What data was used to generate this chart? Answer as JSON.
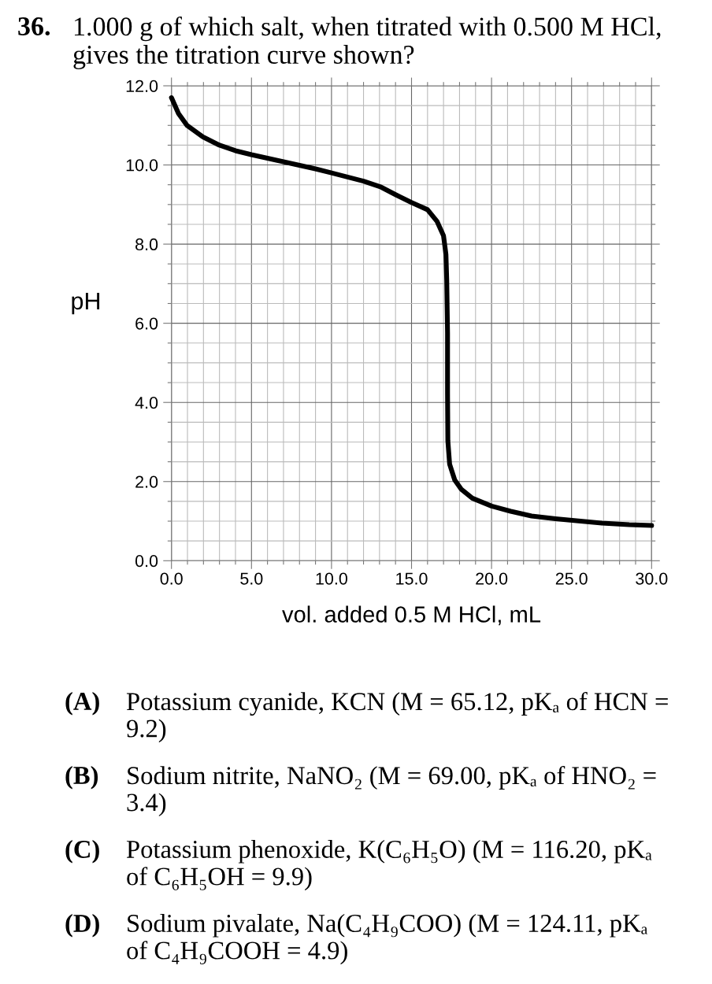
{
  "chart_data": {
    "type": "line",
    "title": "1.000 g of which salt, when titrated with 0.500 M HCl, gives the titration curve shown?",
    "xlabel": "vol. added 0.5 M HCl, mL",
    "ylabel": "pH",
    "annotations": [
      "36.",
      "(A)",
      "Potassium cyanide, KCN (M = 65.12, pKₐ of HCN = 9.2)",
      "(B)",
      "Sodium nitrite, NaNO₂ (M = 69.00, pKₐ of HNO₂ = 3.4)",
      "(C)",
      "Potassium phenoxide, K(C₆H₅O) (M = 116.20, pKₐ of C₆H₅OH = 9.9)",
      "(D)",
      "Sodium pivalate, Na(C₄H₉COO) (M = 124.11, pKₐ of C₄H₉COOH = 4.9)"
    ],
    "x": [
      0,
      0.44,
      0.97,
      2.0,
      3.0,
      4.0,
      5.0,
      7.0,
      9.0,
      10.0,
      12.0,
      13.1,
      14.0,
      15.0,
      16.0,
      16.6,
      17.0,
      17.15,
      17.2,
      17.25,
      17.25,
      17.27,
      17.38,
      17.7,
      18.1,
      18.8,
      20.0,
      21.2,
      22.5,
      24.0,
      25.3,
      26.9,
      28.6,
      30.0
    ],
    "series": [
      {
        "color": "#000000",
        "values": [
          11.7,
          11.3,
          11.0,
          10.7,
          10.5,
          10.36,
          10.26,
          10.08,
          9.9,
          9.8,
          9.59,
          9.44,
          9.25,
          9.05,
          8.87,
          8.57,
          8.21,
          7.74,
          7.08,
          5.75,
          4.23,
          3.03,
          2.44,
          2.04,
          1.81,
          1.58,
          1.38,
          1.25,
          1.13,
          1.06,
          1.01,
          0.95,
          0.91,
          0.89
        ]
      }
    ],
    "xlim": [
      0,
      30
    ],
    "ylim": [
      0,
      12
    ],
    "xticks": [
      {
        "value": 0,
        "label": "0.0"
      },
      {
        "value": 1,
        "label": null
      },
      {
        "value": 2,
        "label": null
      },
      {
        "value": 3,
        "label": null
      },
      {
        "value": 4,
        "label": null
      },
      {
        "value": 5,
        "label": "5.0"
      },
      {
        "value": 6,
        "label": null
      },
      {
        "value": 7,
        "label": null
      },
      {
        "value": 8,
        "label": null
      },
      {
        "value": 9,
        "label": null
      },
      {
        "value": 10,
        "label": "10.0"
      },
      {
        "value": 11,
        "label": null
      },
      {
        "value": 12,
        "label": null
      },
      {
        "value": 13,
        "label": null
      },
      {
        "value": 14,
        "label": null
      },
      {
        "value": 15,
        "label": "15.0"
      },
      {
        "value": 16,
        "label": null
      },
      {
        "value": 17,
        "label": null
      },
      {
        "value": 18,
        "label": null
      },
      {
        "value": 19,
        "label": null
      },
      {
        "value": 20,
        "label": "20.0"
      },
      {
        "value": 21,
        "label": null
      },
      {
        "value": 22,
        "label": null
      },
      {
        "value": 23,
        "label": null
      },
      {
        "value": 24,
        "label": null
      },
      {
        "value": 25,
        "label": "25.0"
      },
      {
        "value": 26,
        "label": null
      },
      {
        "value": 27,
        "label": null
      },
      {
        "value": 28,
        "label": null
      },
      {
        "value": 29,
        "label": null
      },
      {
        "value": 30,
        "label": "30.0"
      }
    ],
    "yticks": [
      {
        "value": 0,
        "label": "0.0"
      },
      {
        "value": 0.5,
        "label": null
      },
      {
        "value": 1,
        "label": null
      },
      {
        "value": 1.5,
        "label": null
      },
      {
        "value": 2,
        "label": "2.0"
      },
      {
        "value": 2.5,
        "label": null
      },
      {
        "value": 3,
        "label": null
      },
      {
        "value": 3.5,
        "label": null
      },
      {
        "value": 4,
        "label": "4.0"
      },
      {
        "value": 4.5,
        "label": null
      },
      {
        "value": 5,
        "label": null
      },
      {
        "value": 5.5,
        "label": null
      },
      {
        "value": 6,
        "label": "6.0"
      },
      {
        "value": 6.5,
        "label": null
      },
      {
        "value": 7,
        "label": null
      },
      {
        "value": 7.5,
        "label": null
      },
      {
        "value": 8,
        "label": "8.0"
      },
      {
        "value": 8.5,
        "label": null
      },
      {
        "value": 9,
        "label": null
      },
      {
        "value": 9.5,
        "label": null
      },
      {
        "value": 10,
        "label": "10.0"
      },
      {
        "value": 10.5,
        "label": null
      },
      {
        "value": 11,
        "label": null
      },
      {
        "value": 11.5,
        "label": null
      },
      {
        "value": 12,
        "label": "12.0"
      }
    ],
    "grid": true,
    "legend": false,
    "marker": "none",
    "line_style": "solid"
  }
}
